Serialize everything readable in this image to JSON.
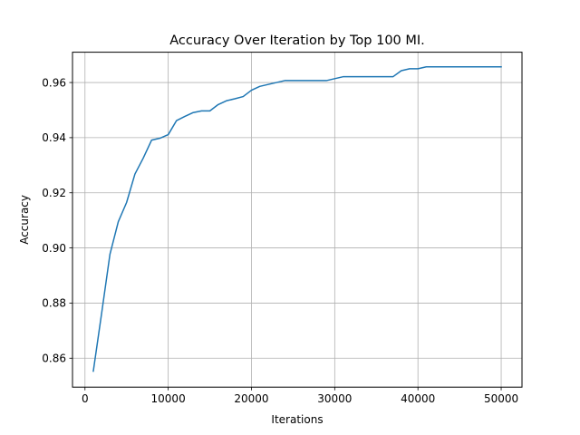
{
  "chart_data": {
    "type": "line",
    "title": "Accuracy Over Iteration by Top 100 MI.",
    "xlabel": "Iterations",
    "ylabel": "Accuracy",
    "xlim": [
      -1500,
      52500
    ],
    "ylim": [
      0.8495,
      0.971
    ],
    "xticks": [
      0,
      10000,
      20000,
      30000,
      40000,
      50000
    ],
    "xtick_labels": [
      "0",
      "10000",
      "20000",
      "30000",
      "40000",
      "50000"
    ],
    "yticks": [
      0.86,
      0.88,
      0.9,
      0.92,
      0.94,
      0.96
    ],
    "ytick_labels": [
      "0.86",
      "0.88",
      "0.90",
      "0.92",
      "0.94",
      "0.96"
    ],
    "grid": true,
    "legend": "none",
    "series": [
      {
        "color": "#1f77b4",
        "x": [
          1000,
          2000,
          3000,
          4000,
          5000,
          6000,
          7000,
          8000,
          9000,
          10000,
          11000,
          12000,
          13000,
          14000,
          15000,
          16000,
          17000,
          18000,
          19000,
          20000,
          21000,
          22000,
          23000,
          24000,
          25000,
          26000,
          27000,
          28000,
          29000,
          30000,
          31000,
          32000,
          33000,
          34000,
          35000,
          36000,
          37000,
          38000,
          39000,
          40000,
          41000,
          42000,
          43000,
          44000,
          45000,
          46000,
          47000,
          48000,
          49000,
          50000
        ],
        "y": [
          0.8553,
          0.8763,
          0.8977,
          0.9095,
          0.9165,
          0.9268,
          0.9326,
          0.9391,
          0.9398,
          0.9411,
          0.9462,
          0.9477,
          0.9491,
          0.9497,
          0.9497,
          0.952,
          0.9534,
          0.9541,
          0.9549,
          0.9572,
          0.9586,
          0.9593,
          0.96,
          0.9607,
          0.9607,
          0.9607,
          0.9607,
          0.9607,
          0.9607,
          0.9614,
          0.9621,
          0.9621,
          0.9621,
          0.9621,
          0.9621,
          0.9621,
          0.9621,
          0.9643,
          0.965,
          0.965,
          0.9657,
          0.9657,
          0.9657,
          0.9657,
          0.9657,
          0.9657,
          0.9657,
          0.9657,
          0.9657,
          0.9657
        ]
      }
    ]
  }
}
